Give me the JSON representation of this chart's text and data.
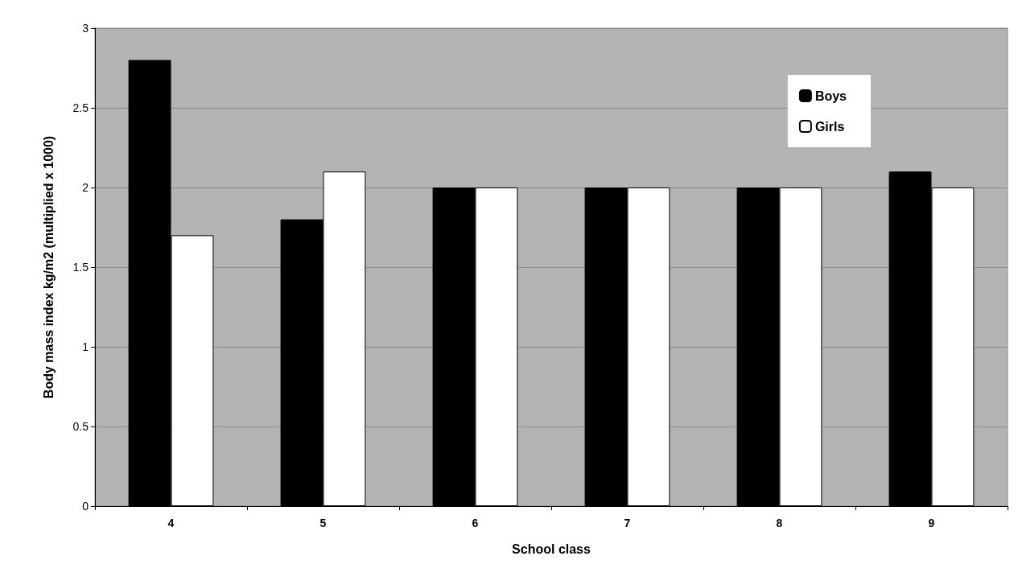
{
  "chart_data": {
    "type": "bar",
    "xlabel": "School class",
    "ylabel": "Body mass index kg/m2 (multiplied x 1000)",
    "categories": [
      "4",
      "5",
      "6",
      "7",
      "8",
      "9"
    ],
    "series": [
      {
        "name": "Boys",
        "color": "#000000",
        "values": [
          2.8,
          1.8,
          2.0,
          2.0,
          2.0,
          2.1
        ]
      },
      {
        "name": "Girls",
        "color": "#ffffff",
        "values": [
          1.7,
          2.1,
          2.0,
          2.0,
          2.0,
          2.0
        ]
      }
    ],
    "ylim": [
      0,
      3
    ],
    "yticks": [
      0,
      0.5,
      1,
      1.5,
      2,
      2.5,
      3
    ],
    "grid": "y",
    "legend": "top right"
  }
}
